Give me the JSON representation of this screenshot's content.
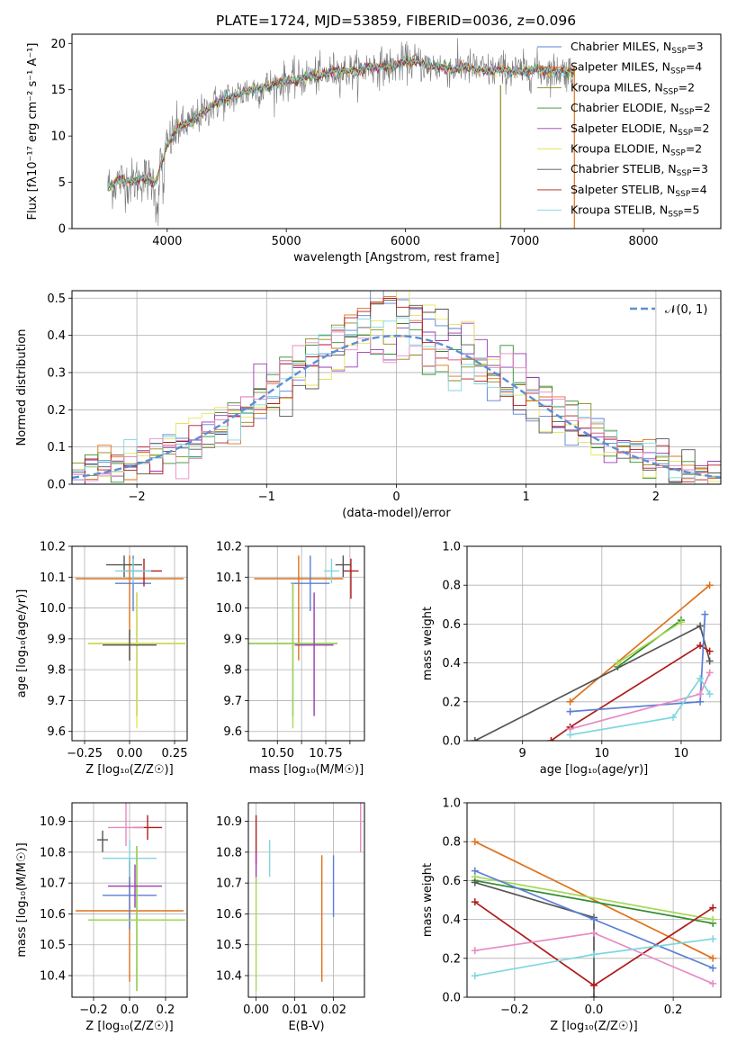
{
  "figure": {
    "title": "PLATE=1724, MJD=53859, FIBERID=0036, z=0.096"
  },
  "colors": {
    "chabrier_miles": "#5b7fd6",
    "salpeter_miles": "#e0711b",
    "kroupa_miles": "#8c8a1f",
    "chabrier_elodie": "#2f8b2f",
    "salpeter_elodie": "#9a3ab5",
    "kroupa_elodie": "#e7e45c",
    "chabrier_stelib": "#555555",
    "salpeter_stelib": "#b01c1c",
    "kroupa_stelib": "#7fd6e0",
    "pink": "#e78ac3",
    "lime": "#a6d854",
    "gauss": "#5b8fd6",
    "grid": "#b0b0b0"
  },
  "chart_data": [
    {
      "id": "spectrum",
      "type": "line",
      "title": "PLATE=1724, MJD=53859, FIBERID=0036, z=0.096",
      "xlabel": "wavelength [Angstrom, rest frame]",
      "ylabel": "Flux [fλ10⁻¹⁷ erg cm⁻² s⁻¹ A⁻¹]",
      "xlim": [
        3200,
        8650
      ],
      "ylim": [
        0,
        21
      ],
      "xticks": [
        4000,
        5000,
        6000,
        7000,
        8000
      ],
      "yticks": [
        0,
        5,
        10,
        15,
        20
      ],
      "grid": false,
      "legend_position": "right",
      "series": [
        {
          "name": "Chabrier MILES, N_SSP=3",
          "label_main": "Chabrier MILES, N",
          "label_sub": "SSP",
          "label_tail": "=3",
          "color": "#5b7fd6"
        },
        {
          "name": "Salpeter MILES, N_SSP=4",
          "label_main": "Salpeter MILES, N",
          "label_sub": "SSP",
          "label_tail": "=4",
          "color": "#e0711b"
        },
        {
          "name": "Kroupa MILES, N_SSP=2",
          "label_main": "Kroupa MILES, N",
          "label_sub": "SSP",
          "label_tail": "=2",
          "color": "#8c8a1f"
        },
        {
          "name": "Chabrier ELODIE, N_SSP=2",
          "label_main": "Chabrier ELODIE, N",
          "label_sub": "SSP",
          "label_tail": "=2",
          "color": "#2f8b2f"
        },
        {
          "name": "Salpeter ELODIE, N_SSP=2",
          "label_main": "Salpeter ELODIE, N",
          "label_sub": "SSP",
          "label_tail": "=2",
          "color": "#9a3ab5"
        },
        {
          "name": "Kroupa ELODIE, N_SSP=2",
          "label_main": "Kroupa ELODIE, N",
          "label_sub": "SSP",
          "label_tail": "=2",
          "color": "#e7e45c"
        },
        {
          "name": "Chabrier STELIB, N_SSP=3",
          "label_main": "Chabrier STELIB, N",
          "label_sub": "SSP",
          "label_tail": "=3",
          "color": "#555555"
        },
        {
          "name": "Salpeter STELIB, N_SSP=4",
          "label_main": "Salpeter STELIB, N",
          "label_sub": "SSP",
          "label_tail": "=4",
          "color": "#b01c1c"
        },
        {
          "name": "Kroupa STELIB, N_SSP=5",
          "label_main": "Kroupa STELIB, N",
          "label_sub": "SSP",
          "label_tail": "=5",
          "color": "#7fd6e0"
        }
      ],
      "continuum": {
        "x": [
          3500,
          3600,
          3700,
          3800,
          3900,
          4000,
          4100,
          4200,
          4300,
          4400,
          4500,
          4600,
          4700,
          4800,
          4900,
          5000,
          5100,
          5200,
          5300,
          5400,
          5500,
          5600,
          5700,
          5800,
          5900,
          6000,
          6100,
          6200,
          6300,
          6400,
          6500,
          6600,
          6700,
          6800,
          6900,
          7000,
          7100,
          7200,
          7300,
          7400
        ],
        "y": [
          4.5,
          5.2,
          5.0,
          5.5,
          5.0,
          9.0,
          11.0,
          11.5,
          12.5,
          13.5,
          14.0,
          14.5,
          15.0,
          15.2,
          15.5,
          16.0,
          16.0,
          16.5,
          16.5,
          17.0,
          17.0,
          17.0,
          17.5,
          17.5,
          17.5,
          18.0,
          18.0,
          17.5,
          17.5,
          17.2,
          17.5,
          17.2,
          17.0,
          17.2,
          17.0,
          17.0,
          17.2,
          17.0,
          17.0,
          17.0
        ]
      },
      "vertical_lines": [
        {
          "x": 6800,
          "y0": 0,
          "y1": 15.5,
          "color": "#8c8a1f"
        },
        {
          "x": 7420,
          "y0": 0,
          "y1": 17.5,
          "color": "#e0711b"
        }
      ]
    },
    {
      "id": "residuals",
      "type": "line",
      "xlabel": "(data-model)/error",
      "ylabel": "Normed distribution",
      "xlim": [
        -2.5,
        2.5
      ],
      "ylim": [
        0,
        0.52
      ],
      "xticks": [
        -2,
        -1,
        0,
        1,
        2
      ],
      "yticks": [
        0.0,
        0.1,
        0.2,
        0.3,
        0.4,
        0.5
      ],
      "grid": true,
      "legend_position": "top-right",
      "gauss_label": "𝒩(0, 1)"
    },
    {
      "id": "age-vs-Z",
      "type": "scatter",
      "xlabel": "Z [log₁₀(Z/Z☉)]",
      "ylabel": "age  [log₁₀(age/yr)]",
      "xlim": [
        -0.32,
        0.32
      ],
      "ylim": [
        9.57,
        10.2
      ],
      "xticks": [
        -0.25,
        0.0,
        0.25
      ],
      "xticklabels": [
        "−0.25",
        "0.00",
        "0.25"
      ],
      "yticks": [
        9.6,
        9.7,
        9.8,
        9.9,
        10.0,
        10.1,
        10.2
      ],
      "grid": true,
      "points": [
        {
          "x": 0.0,
          "y": 10.095,
          "xerr": 0.3,
          "y0": 9.83,
          "y1": 10.17,
          "color": "#e0711b"
        },
        {
          "x": 0.02,
          "y": 10.08,
          "xerr": 0.1,
          "y0": 9.99,
          "y1": 10.17,
          "color": "#5b7fd6"
        },
        {
          "x": -0.03,
          "y": 10.14,
          "xerr": 0.1,
          "y0": 10.1,
          "y1": 10.17,
          "color": "#555555"
        },
        {
          "x": 0.08,
          "y": 10.12,
          "xerr": 0.1,
          "y0": 10.07,
          "y1": 10.16,
          "color": "#b01c1c"
        },
        {
          "x": 0.02,
          "y": 10.12,
          "xerr": 0.1,
          "y0": 10.08,
          "y1": 10.16,
          "color": "#7fd6e0"
        },
        {
          "x": 0.04,
          "y": 9.885,
          "xerr": 0.27,
          "y0": 9.65,
          "y1": 10.05,
          "color": "#2f8b2f"
        },
        {
          "x": 0.04,
          "y": 9.885,
          "xerr": 0.27,
          "y0": 9.61,
          "y1": 10.05,
          "color": "#e7e45c"
        },
        {
          "x": 0.0,
          "y": 9.88,
          "xerr": 0.15,
          "y0": 9.83,
          "y1": 9.93,
          "color": "#555555"
        }
      ]
    },
    {
      "id": "age-vs-mass",
      "type": "scatter",
      "xlabel": "mass [log₁₀(M/M☉)]",
      "xlim": [
        10.35,
        10.95
      ],
      "ylim": [
        9.57,
        10.2
      ],
      "xticks": [
        10.5,
        10.625,
        10.75,
        10.875
      ],
      "xticklabels": [
        "10.50",
        "",
        "10.75",
        ""
      ],
      "yticks": [
        9.6,
        9.7,
        9.8,
        9.9,
        10.0,
        10.1,
        10.2
      ],
      "grid": true,
      "points": [
        {
          "x": 10.61,
          "y": 10.095,
          "xerr": 0.23,
          "y0": 9.83,
          "y1": 10.17,
          "color": "#e0711b"
        },
        {
          "x": 10.67,
          "y": 10.08,
          "xerr": 0.1,
          "y0": 9.99,
          "y1": 10.17,
          "color": "#5b7fd6"
        },
        {
          "x": 10.84,
          "y": 10.14,
          "xerr": 0.04,
          "y0": 10.1,
          "y1": 10.17,
          "color": "#555555"
        },
        {
          "x": 10.88,
          "y": 10.12,
          "xerr": 0.04,
          "y0": 10.03,
          "y1": 10.16,
          "color": "#b01c1c"
        },
        {
          "x": 10.78,
          "y": 10.12,
          "xerr": 0.04,
          "y0": 10.08,
          "y1": 10.16,
          "color": "#7fd6e0"
        },
        {
          "x": 10.58,
          "y": 9.885,
          "xerr": 0.23,
          "y0": 9.65,
          "y1": 10.08,
          "color": "#2f8b2f"
        },
        {
          "x": 10.58,
          "y": 9.885,
          "xerr": 0.23,
          "y0": 9.61,
          "y1": 10.08,
          "color": "#a6d854"
        },
        {
          "x": 10.69,
          "y": 9.88,
          "xerr": 0.1,
          "y0": 9.65,
          "y1": 10.05,
          "color": "#9a3ab5"
        }
      ]
    },
    {
      "id": "weight-vs-age",
      "type": "line",
      "xlabel": "age  [log₁₀(age/yr)]",
      "ylabel": "mass weight",
      "xlim": [
        8.65,
        10.25
      ],
      "ylim": [
        0,
        1
      ],
      "xticks": [
        9.0,
        9.5,
        10.0
      ],
      "yticks": [
        0.0,
        0.2,
        0.4,
        0.6,
        0.8,
        1.0
      ],
      "grid": true,
      "series": [
        {
          "color": "#e0711b",
          "x": [
            9.3,
            10.18
          ],
          "y": [
            0.2,
            0.8
          ]
        },
        {
          "color": "#2f8b2f",
          "x": [
            9.6,
            10.0
          ],
          "y": [
            0.38,
            0.62
          ]
        },
        {
          "color": "#a6d854",
          "x": [
            9.6,
            10.0
          ],
          "y": [
            0.4,
            0.61
          ]
        },
        {
          "color": "#555555",
          "x": [
            8.7,
            10.12,
            10.18
          ],
          "y": [
            0.0,
            0.59,
            0.41
          ]
        },
        {
          "color": "#b01c1c",
          "x": [
            9.18,
            9.3,
            10.12,
            10.18
          ],
          "y": [
            0.0,
            0.07,
            0.49,
            0.46
          ]
        },
        {
          "color": "#5b7fd6",
          "x": [
            9.3,
            10.12,
            10.15
          ],
          "y": [
            0.15,
            0.2,
            0.65
          ]
        },
        {
          "color": "#e78ac3",
          "x": [
            9.3,
            10.12,
            10.18
          ],
          "y": [
            0.06,
            0.24,
            0.35
          ]
        },
        {
          "color": "#7fd6e0",
          "x": [
            9.3,
            9.95,
            10.12,
            10.18
          ],
          "y": [
            0.03,
            0.12,
            0.32,
            0.24
          ]
        }
      ]
    },
    {
      "id": "mass-vs-Z",
      "type": "scatter",
      "xlabel": "Z [log₁₀(Z/Z☉)]",
      "ylabel": "mass [log₁₀(M/M☉)]",
      "xlim": [
        -0.32,
        0.32
      ],
      "ylim": [
        10.33,
        10.96
      ],
      "xticks": [
        -0.2,
        0.0,
        0.2
      ],
      "xticklabels": [
        "−0.2",
        "0.0",
        "0.2"
      ],
      "yticks": [
        10.4,
        10.5,
        10.6,
        10.7,
        10.8,
        10.9
      ],
      "grid": true,
      "points": [
        {
          "x": 0.0,
          "y": 10.61,
          "xerr": 0.3,
          "y0": 10.38,
          "y1": 10.78,
          "color": "#e0711b"
        },
        {
          "x": 0.0,
          "y": 10.66,
          "xerr": 0.15,
          "y0": 10.55,
          "y1": 10.77,
          "color": "#5b7fd6"
        },
        {
          "x": -0.15,
          "y": 10.84,
          "xerr": 0.03,
          "y0": 10.8,
          "y1": 10.87,
          "color": "#555555"
        },
        {
          "x": 0.1,
          "y": 10.88,
          "xerr": 0.08,
          "y0": 10.84,
          "y1": 10.92,
          "color": "#b01c1c"
        },
        {
          "x": 0.0,
          "y": 10.78,
          "xerr": 0.15,
          "y0": 10.72,
          "y1": 10.84,
          "color": "#7fd6e0"
        },
        {
          "x": 0.04,
          "y": 10.58,
          "xerr": 0.27,
          "y0": 10.35,
          "y1": 10.82,
          "color": "#2f8b2f"
        },
        {
          "x": 0.04,
          "y": 10.58,
          "xerr": 0.27,
          "y0": 10.35,
          "y1": 10.82,
          "color": "#a6d854"
        },
        {
          "x": 0.03,
          "y": 10.69,
          "xerr": 0.15,
          "y0": 10.62,
          "y1": 10.76,
          "color": "#9a3ab5"
        },
        {
          "x": -0.02,
          "y": 10.88,
          "xerr": 0.1,
          "y0": 10.82,
          "y1": 10.96,
          "color": "#e78ac3"
        }
      ]
    },
    {
      "id": "mass-vs-EBV",
      "type": "scatter",
      "xlabel": "E(B-V)",
      "xlim": [
        -0.002,
        0.028
      ],
      "ylim": [
        10.33,
        10.96
      ],
      "xticks": [
        0.0,
        0.01,
        0.02
      ],
      "xticklabels": [
        "0.00",
        "0.01",
        "0.02"
      ],
      "yticks": [
        10.4,
        10.5,
        10.6,
        10.7,
        10.8,
        10.9
      ],
      "grid": true,
      "points": [
        {
          "x": 0.0,
          "y": 10.86,
          "y0": 10.76,
          "y1": 10.92,
          "color": "#b01c1c"
        },
        {
          "x": 0.0,
          "y": 10.75,
          "y0": 10.7,
          "y1": 10.8,
          "color": "#9a3ab5"
        },
        {
          "x": 0.0,
          "y": 10.55,
          "y0": 10.35,
          "y1": 10.72,
          "color": "#a6d854"
        },
        {
          "x": 0.0035,
          "y": 10.78,
          "y0": 10.72,
          "y1": 10.84,
          "color": "#7fd6e0"
        },
        {
          "x": 0.017,
          "y": 10.58,
          "y0": 10.38,
          "y1": 10.79,
          "color": "#e0711b"
        },
        {
          "x": 0.02,
          "y": 10.69,
          "y0": 10.59,
          "y1": 10.79,
          "color": "#5b7fd6"
        },
        {
          "x": 0.027,
          "y": 10.88,
          "y0": 10.8,
          "y1": 10.96,
          "color": "#e78ac3"
        }
      ]
    },
    {
      "id": "weight-vs-Z",
      "type": "line",
      "xlabel": "Z [log₁₀(Z/Z☉)]",
      "ylabel": "mass weight",
      "xlim": [
        -0.32,
        0.32
      ],
      "ylim": [
        0,
        1
      ],
      "xticks": [
        -0.2,
        0.0,
        0.2
      ],
      "xticklabels": [
        "−0.2",
        "0.0",
        "0.2"
      ],
      "yticks": [
        0.0,
        0.2,
        0.4,
        0.6,
        0.8,
        1.0
      ],
      "grid": true,
      "series": [
        {
          "color": "#e0711b",
          "x": [
            -0.3,
            0.3
          ],
          "y": [
            0.8,
            0.2
          ]
        },
        {
          "color": "#2f8b2f",
          "x": [
            -0.3,
            0.3
          ],
          "y": [
            0.6,
            0.38
          ]
        },
        {
          "color": "#a6d854",
          "x": [
            -0.3,
            0.3
          ],
          "y": [
            0.62,
            0.4
          ]
        },
        {
          "color": "#555555",
          "x": [
            -0.3,
            0.0,
            0.0
          ],
          "y": [
            0.59,
            0.41,
            0.0
          ]
        },
        {
          "color": "#b01c1c",
          "x": [
            -0.3,
            0.0,
            0.3
          ],
          "y": [
            0.49,
            0.06,
            0.46
          ]
        },
        {
          "color": "#5b7fd6",
          "x": [
            -0.3,
            0.0,
            0.3
          ],
          "y": [
            0.65,
            0.4,
            0.15
          ]
        },
        {
          "color": "#e78ac3",
          "x": [
            -0.3,
            0.0,
            0.3
          ],
          "y": [
            0.24,
            0.33,
            0.07
          ]
        },
        {
          "color": "#7fd6e0",
          "x": [
            -0.3,
            0.0,
            0.3
          ],
          "y": [
            0.11,
            0.22,
            0.3
          ]
        }
      ]
    }
  ]
}
